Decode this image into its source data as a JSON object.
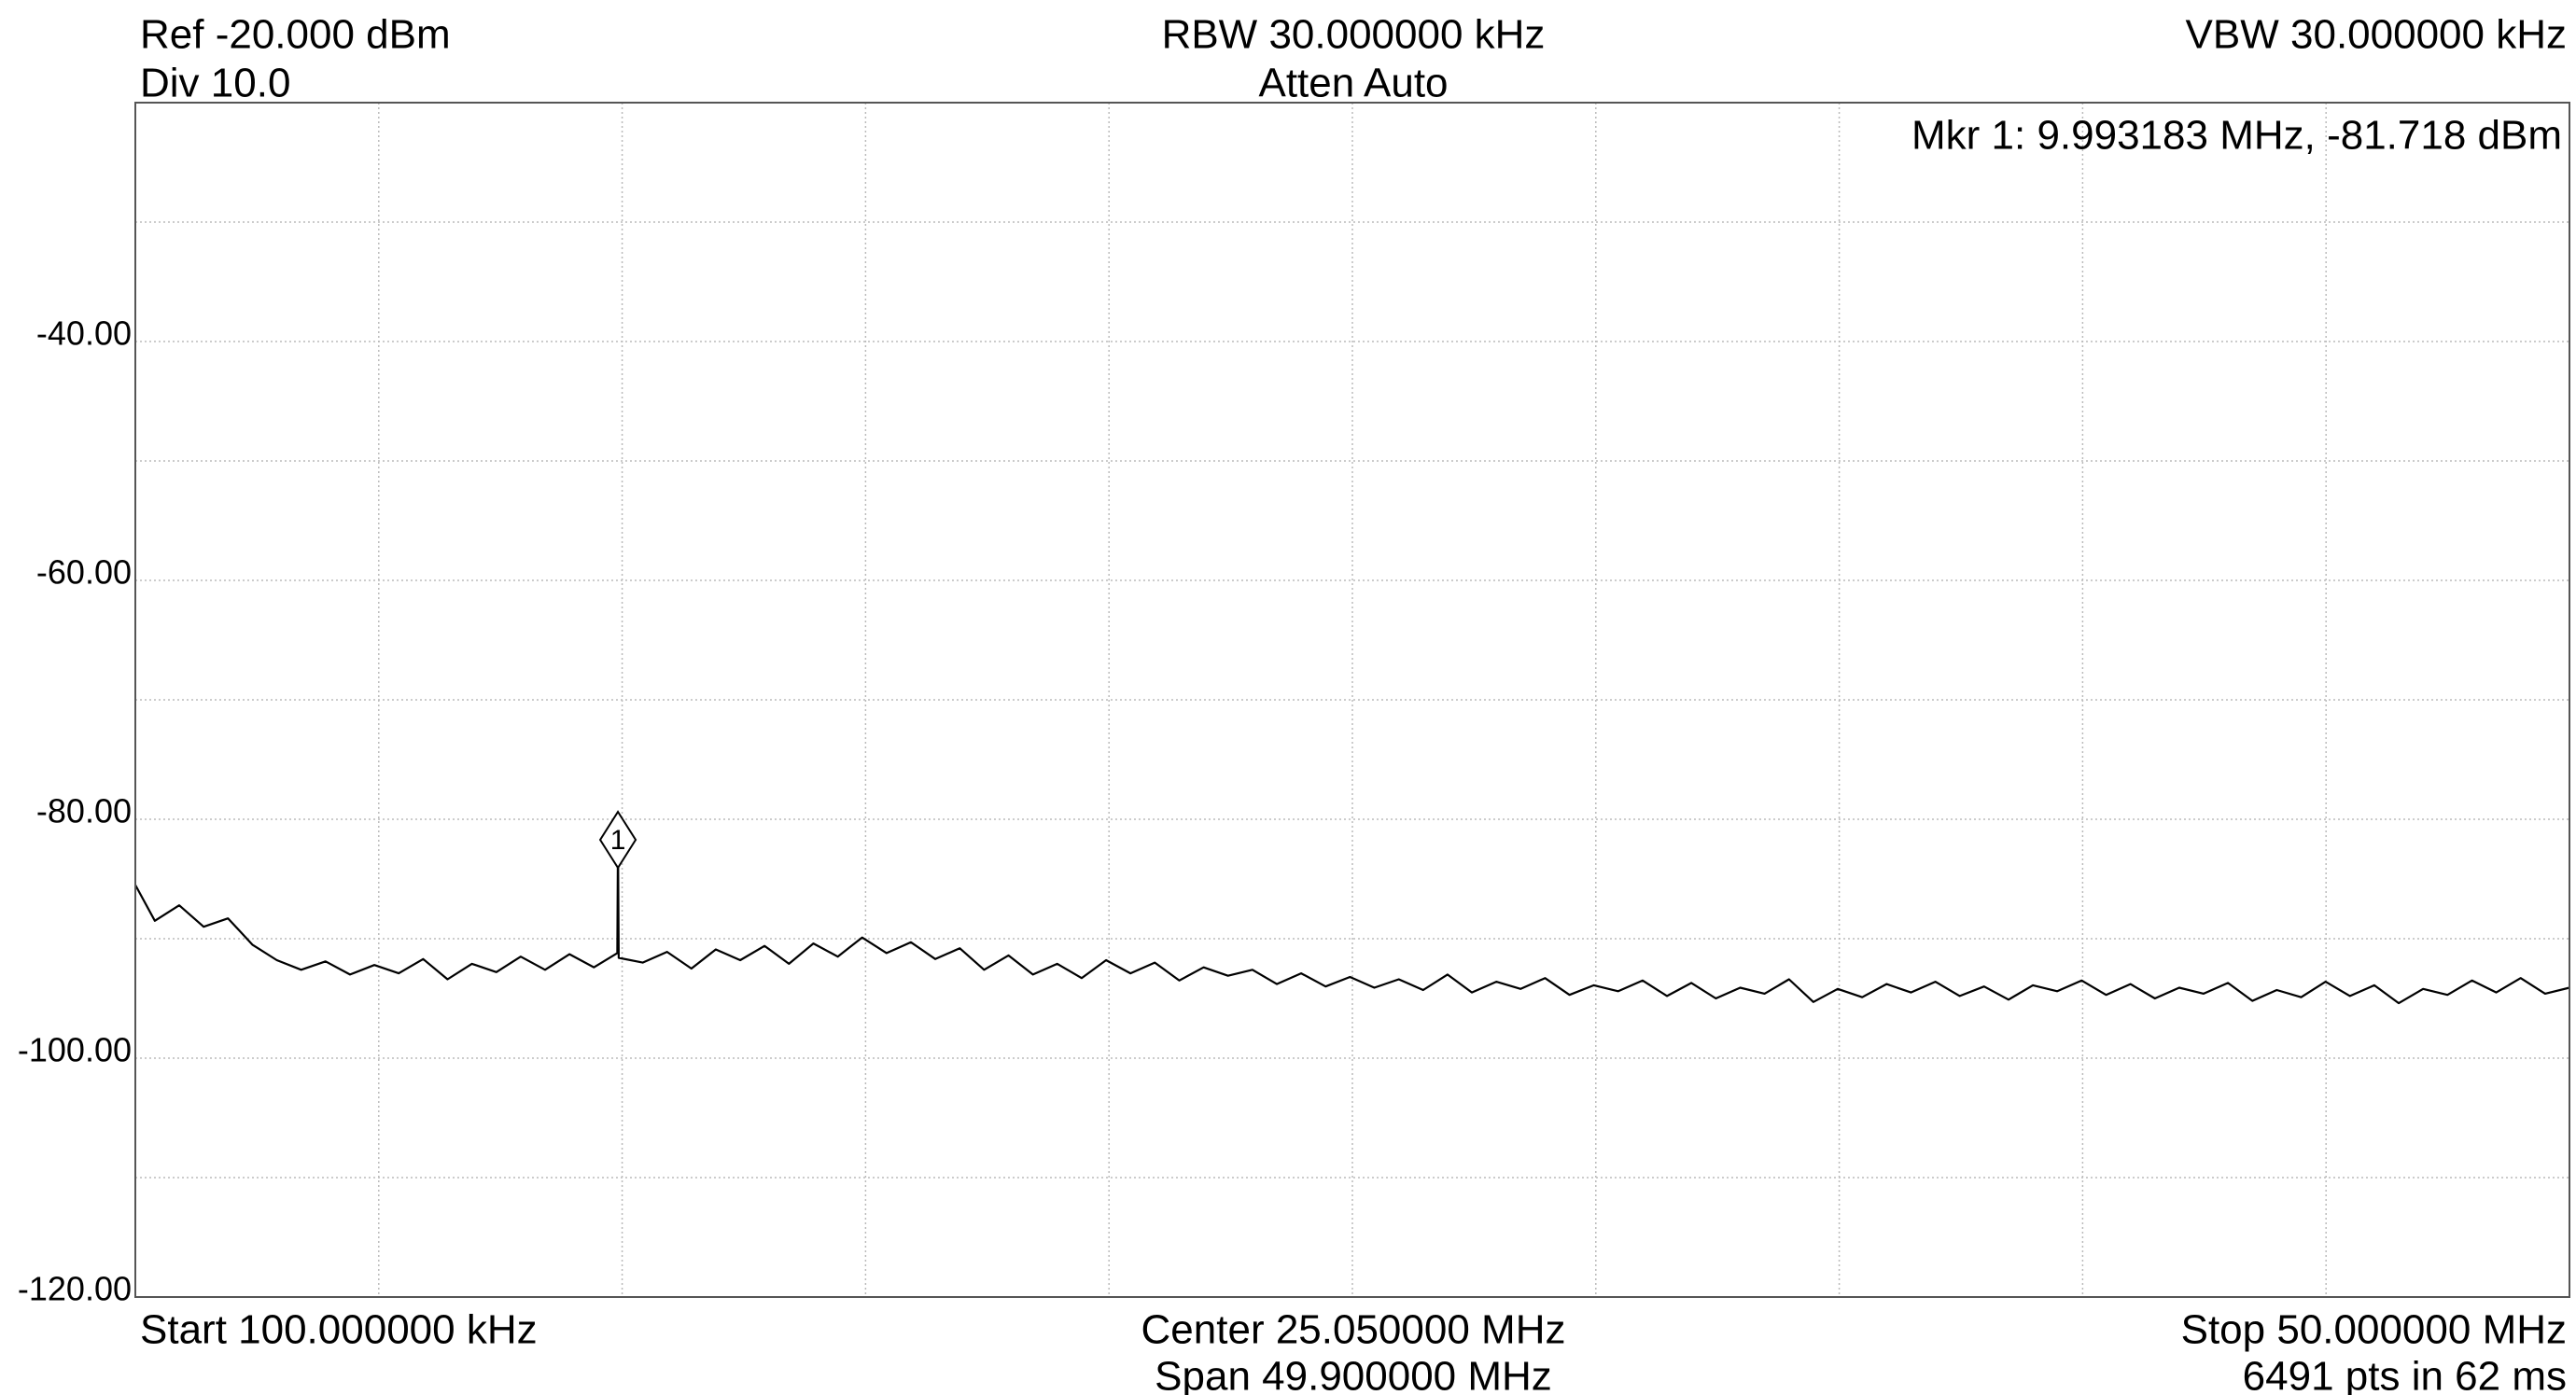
{
  "chart_data": {
    "type": "line",
    "annotations": {
      "ref": "Ref -20.000 dBm",
      "div": "Div 10.0",
      "rbw": "RBW 30.000000 kHz",
      "atten": "Atten Auto",
      "vbw": "VBW 30.000000 kHz",
      "marker_readout": "Mkr 1: 9.993183 MHz, -81.718 dBm",
      "start": "Start 100.000000 kHz",
      "center": "Center 25.050000 MHz",
      "span": "Span 49.900000 MHz",
      "stop": "Stop 50.000000 MHz",
      "points": "6491 pts in 62 ms"
    },
    "xlim": [
      0.1,
      50
    ],
    "xticks": [
      5.09,
      10.08,
      15.07,
      20.06,
      25.05,
      30.04,
      35.03,
      40.02,
      45.01
    ],
    "ylim": [
      -120,
      -20
    ],
    "yticks": [
      {
        "value": -40,
        "label": "-40.00"
      },
      {
        "value": -60,
        "label": "-60.00"
      },
      {
        "value": -80,
        "label": "-80.00"
      },
      {
        "value": -100,
        "label": "-100.00"
      },
      {
        "value": -120,
        "label": "-120.00"
      }
    ],
    "ygrid": [
      -30,
      -40,
      -50,
      -60,
      -70,
      -80,
      -90,
      -100,
      -110
    ],
    "grid": true,
    "color": "#000000",
    "x": [
      0.1,
      0.5,
      1,
      1.5,
      2,
      2.5,
      3,
      3.5,
      4,
      4.5,
      5,
      5.5,
      6,
      6.5,
      7,
      7.5,
      8,
      8.5,
      9,
      9.5,
      9.98,
      9.993183,
      10.01,
      10.5,
      11,
      11.5,
      12,
      12.5,
      13,
      13.5,
      14,
      14.5,
      15,
      15.5,
      16,
      16.5,
      17,
      17.5,
      18,
      18.5,
      19,
      19.5,
      20,
      20.5,
      21,
      21.5,
      22,
      22.5,
      23,
      23.5,
      24,
      24.5,
      25,
      25.5,
      26,
      26.5,
      27,
      27.5,
      28,
      28.5,
      29,
      29.5,
      30,
      30.5,
      31,
      31.5,
      32,
      32.5,
      33,
      33.5,
      34,
      34.5,
      35,
      35.5,
      36,
      36.5,
      37,
      37.5,
      38,
      38.5,
      39,
      39.5,
      40,
      40.5,
      41,
      41.5,
      42,
      42.5,
      43,
      43.5,
      44,
      44.5,
      45,
      45.5,
      46,
      46.5,
      47,
      47.5,
      48,
      48.5,
      49,
      49.5,
      50
    ],
    "values": [
      -85.5,
      -88.5,
      -87.2,
      -89.0,
      -88.3,
      -90.5,
      -91.8,
      -92.6,
      -91.9,
      -93.0,
      -92.2,
      -92.9,
      -91.7,
      -93.4,
      -92.1,
      -92.8,
      -91.5,
      -92.6,
      -91.3,
      -92.4,
      -91.2,
      -81.718,
      -91.6,
      -92.0,
      -91.1,
      -92.5,
      -90.9,
      -91.8,
      -90.6,
      -92.1,
      -90.4,
      -91.5,
      -89.9,
      -91.2,
      -90.3,
      -91.7,
      -90.8,
      -92.6,
      -91.4,
      -93.0,
      -92.1,
      -93.3,
      -91.8,
      -92.9,
      -92.0,
      -93.5,
      -92.4,
      -93.1,
      -92.6,
      -93.8,
      -92.9,
      -94.0,
      -93.2,
      -94.1,
      -93.4,
      -94.3,
      -93.0,
      -94.5,
      -93.6,
      -94.2,
      -93.3,
      -94.7,
      -93.9,
      -94.4,
      -93.5,
      -94.8,
      -93.7,
      -95.0,
      -94.1,
      -94.6,
      -93.4,
      -95.3,
      -94.2,
      -94.9,
      -93.8,
      -94.5,
      -93.6,
      -94.8,
      -94.0,
      -95.1,
      -93.9,
      -94.4,
      -93.5,
      -94.7,
      -93.8,
      -95.0,
      -94.1,
      -94.6,
      -93.7,
      -95.2,
      -94.3,
      -94.9,
      -93.6,
      -94.8,
      -93.9,
      -95.4,
      -94.2,
      -94.7,
      -93.5,
      -94.5,
      -93.3,
      -94.6,
      -94.1
    ],
    "marker": {
      "label": "1",
      "x": 9.993183,
      "value": -81.718
    }
  }
}
